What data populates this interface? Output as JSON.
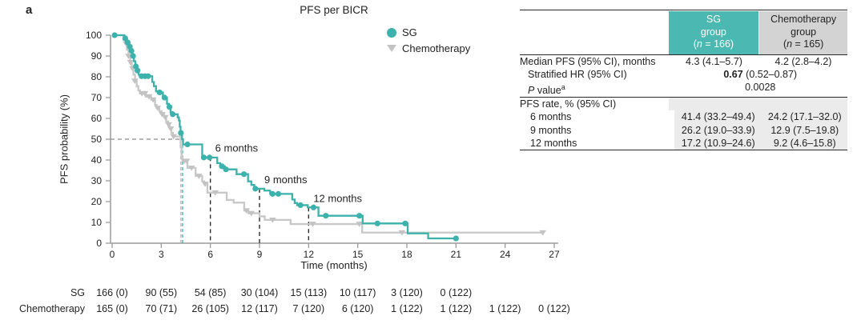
{
  "panel_label": "a",
  "plot": {
    "title": "PFS per BICR",
    "x_axis_title": "Time (months)",
    "y_axis_title": "PFS probability (%)",
    "legend": [
      {
        "label": "SG",
        "marker": "circle",
        "color": "#3db1ab"
      },
      {
        "label": "Chemotherapy",
        "marker": "triangle-down",
        "color": "#c3c3c3"
      }
    ]
  },
  "colors": {
    "sg_line": "#3db1ab",
    "chemo_line": "#c8c8c8",
    "chemo_marker": "#c3c3c3",
    "sg_header_bg": "#4cb8b2",
    "chemo_header_bg": "#d3d3d3",
    "section_shade": "#ebebeb",
    "axis": "#9b9b9b",
    "dashed_gray": "#8c8c8c",
    "dashed_black": "#2b2b2b"
  },
  "chart_data": {
    "type": "line",
    "subtype": "kaplan-meier-step",
    "title": "PFS per BICR",
    "xlabel": "Time (months)",
    "ylabel": "PFS probability (%)",
    "xlim": [
      0,
      27
    ],
    "ylim": [
      0,
      100
    ],
    "x_ticks": [
      0,
      3,
      6,
      9,
      12,
      15,
      18,
      21,
      24,
      27
    ],
    "y_ticks": [
      0,
      10,
      20,
      30,
      40,
      50,
      60,
      70,
      80,
      90,
      100
    ],
    "series": [
      {
        "name": "Chemotherapy",
        "color": "#c8c8c8",
        "marker": "triangle-down",
        "marker_color": "#c3c3c3",
        "end_month": 26.35,
        "steps": [
          [
            0,
            100
          ],
          [
            0.7,
            98
          ],
          [
            0.8,
            96
          ],
          [
            0.9,
            93
          ],
          [
            1.0,
            90
          ],
          [
            1.1,
            87
          ],
          [
            1.2,
            84
          ],
          [
            1.3,
            81
          ],
          [
            1.4,
            78
          ],
          [
            1.5,
            75.5
          ],
          [
            1.6,
            73.5
          ],
          [
            1.7,
            72
          ],
          [
            2.05,
            70.5
          ],
          [
            2.38,
            69
          ],
          [
            2.62,
            66.5
          ],
          [
            2.72,
            65
          ],
          [
            2.88,
            63.5
          ],
          [
            3.02,
            62
          ],
          [
            3.18,
            60.5
          ],
          [
            3.3,
            58.5
          ],
          [
            3.42,
            57
          ],
          [
            3.52,
            55
          ],
          [
            3.62,
            53
          ],
          [
            3.72,
            51.3
          ],
          [
            4.18,
            46
          ],
          [
            4.24,
            42
          ],
          [
            4.3,
            39.5
          ],
          [
            4.6,
            36.2
          ],
          [
            5.1,
            32.3
          ],
          [
            5.5,
            29.7
          ],
          [
            5.62,
            28.5
          ],
          [
            5.82,
            24.3
          ],
          [
            7.0,
            20.8
          ],
          [
            7.42,
            19.5
          ],
          [
            8.07,
            15.7
          ],
          [
            8.32,
            14.4
          ],
          [
            9.0,
            12.9
          ],
          [
            9.32,
            11.2
          ],
          [
            10.9,
            9.2
          ],
          [
            15.27,
            5.1
          ]
        ],
        "censor_marks": [
          [
            0.85,
            96
          ],
          [
            1.0,
            90
          ],
          [
            1.12,
            87
          ],
          [
            1.25,
            84
          ],
          [
            1.38,
            78
          ],
          [
            1.82,
            72
          ],
          [
            2.0,
            72
          ],
          [
            2.25,
            70.5
          ],
          [
            2.5,
            69
          ],
          [
            2.78,
            65
          ],
          [
            3.05,
            62
          ],
          [
            3.25,
            60.5
          ],
          [
            3.45,
            57
          ],
          [
            3.58,
            55
          ],
          [
            3.75,
            51.3
          ],
          [
            4.4,
            39.5
          ],
          [
            4.55,
            39.5
          ],
          [
            4.85,
            36.2
          ],
          [
            5.3,
            32.3
          ],
          [
            5.68,
            28.5
          ],
          [
            6.3,
            24.3
          ],
          [
            8.2,
            15.7
          ],
          [
            8.5,
            14.4
          ],
          [
            9.8,
            11.2
          ],
          [
            12.25,
            9.2
          ],
          [
            15.1,
            9.2
          ],
          [
            17.7,
            5.1
          ],
          [
            26.3,
            5.1
          ]
        ]
      },
      {
        "name": "SG",
        "color": "#3db1ab",
        "marker": "circle",
        "marker_color": "#3db1ab",
        "end_month": 21.0,
        "steps": [
          [
            0,
            100
          ],
          [
            0.75,
            98.5
          ],
          [
            0.9,
            96.5
          ],
          [
            1.05,
            94.5
          ],
          [
            1.15,
            92.5
          ],
          [
            1.25,
            90
          ],
          [
            1.33,
            87.5
          ],
          [
            1.42,
            85
          ],
          [
            1.52,
            83
          ],
          [
            1.62,
            81
          ],
          [
            1.72,
            80.3
          ],
          [
            2.45,
            77.5
          ],
          [
            2.55,
            75.5
          ],
          [
            2.68,
            73
          ],
          [
            2.8,
            72.5
          ],
          [
            3.1,
            70
          ],
          [
            3.35,
            67
          ],
          [
            3.47,
            65.5
          ],
          [
            3.57,
            63
          ],
          [
            3.65,
            62
          ],
          [
            4.0,
            60.5
          ],
          [
            4.08,
            59
          ],
          [
            4.13,
            56
          ],
          [
            4.18,
            53
          ],
          [
            4.27,
            50
          ],
          [
            4.33,
            47.5
          ],
          [
            5.5,
            41.2
          ],
          [
            6.42,
            38.5
          ],
          [
            6.6,
            37
          ],
          [
            6.88,
            35.5
          ],
          [
            7.6,
            33.2
          ],
          [
            8.3,
            29.7
          ],
          [
            8.5,
            28
          ],
          [
            8.68,
            26.2
          ],
          [
            9.3,
            25.3
          ],
          [
            9.65,
            23.7
          ],
          [
            11.0,
            21
          ],
          [
            11.15,
            19.3
          ],
          [
            11.3,
            18.3
          ],
          [
            11.95,
            17.2
          ],
          [
            12.6,
            13.2
          ],
          [
            15.3,
            9.5
          ],
          [
            18.05,
            4.7
          ],
          [
            19.3,
            2.3
          ]
        ],
        "censor_marks": [
          [
            0.15,
            100
          ],
          [
            0.8,
            98.5
          ],
          [
            0.95,
            96.5
          ],
          [
            1.08,
            94.5
          ],
          [
            1.18,
            92.5
          ],
          [
            1.28,
            90
          ],
          [
            1.45,
            85
          ],
          [
            1.55,
            83
          ],
          [
            1.8,
            80.3
          ],
          [
            2.0,
            80.3
          ],
          [
            2.2,
            80.3
          ],
          [
            2.9,
            72.5
          ],
          [
            3.2,
            70
          ],
          [
            3.5,
            65.5
          ],
          [
            3.7,
            62
          ],
          [
            4.2,
            53
          ],
          [
            4.6,
            47.5
          ],
          [
            5.6,
            41.2
          ],
          [
            5.95,
            41.2
          ],
          [
            6.7,
            37
          ],
          [
            6.95,
            35.5
          ],
          [
            8.05,
            33.2
          ],
          [
            8.75,
            26.2
          ],
          [
            9.8,
            23.7
          ],
          [
            10.15,
            23.7
          ],
          [
            11.5,
            18.3
          ],
          [
            12.3,
            17.2
          ],
          [
            13.05,
            13.2
          ],
          [
            15.1,
            13.2
          ],
          [
            16.2,
            9.5
          ],
          [
            17.9,
            9.5
          ],
          [
            21.0,
            2.3
          ]
        ]
      }
    ],
    "reference_lines": {
      "median_horizontal_pct": 50,
      "median_sg_months": 4.3,
      "median_chemo_months": 4.2,
      "timepoint_lines": [
        {
          "month": 6,
          "top_pct": 41.4,
          "label": "6 months"
        },
        {
          "month": 9,
          "top_pct": 26.2,
          "label": "9 months"
        },
        {
          "month": 12,
          "top_pct": 17.2,
          "label": "12 months"
        }
      ]
    },
    "risk_table": {
      "tick_months": [
        0,
        3,
        6,
        9,
        12,
        15,
        18,
        21,
        24,
        27
      ],
      "rows": [
        {
          "label": "SG",
          "counts": [
            "166 (0)",
            "90 (55)",
            "54 (85)",
            "30 (104)",
            "15 (113)",
            "10 (117)",
            "3 (120)",
            "0 (122)"
          ]
        },
        {
          "label": "Chemotherapy",
          "counts": [
            "165 (0)",
            "70 (71)",
            "26 (105)",
            "12 (117)",
            "7 (120)",
            "6 (120)",
            "1 (122)",
            "1 (122)",
            "1 (122)",
            "0 (122)"
          ]
        }
      ]
    }
  },
  "summary_table": {
    "header": {
      "sg": {
        "line1": "SG",
        "line2": "group",
        "n_pre": "(",
        "n_italic": "n",
        "n_post": " = 166)"
      },
      "chemo": {
        "line1": "Chemotherapy",
        "line2": "group",
        "n_pre": "(",
        "n_italic": "n",
        "n_post": " = 165)"
      }
    },
    "rows": {
      "median": {
        "label": "Median PFS (95% CI), months",
        "sg": "4.3 (4.1–5.7)",
        "chemo": "4.2 (2.8–4.2)"
      },
      "hr": {
        "label": "Stratified HR (95% CI)",
        "value_bold": "0.67",
        "value_rest": " (0.52–0.87)"
      },
      "pvalue": {
        "label_italic": "P",
        "label_rest": " value",
        "label_sup": "a",
        "value": "0.0028"
      },
      "section": {
        "label": "PFS rate, % (95% CI)"
      },
      "m6": {
        "label": "6 months",
        "sg": "41.4 (33.2–49.4)",
        "chemo": "24.2 (17.1–32.0)"
      },
      "m9": {
        "label": "9 months",
        "sg": "26.2 (19.0–33.9)",
        "chemo": "12.9 (7.5–19.8)"
      },
      "m12": {
        "label": "12 months",
        "sg": "17.2 (10.9–24.6)",
        "chemo": "9.2 (4.6–15.8)"
      }
    }
  }
}
